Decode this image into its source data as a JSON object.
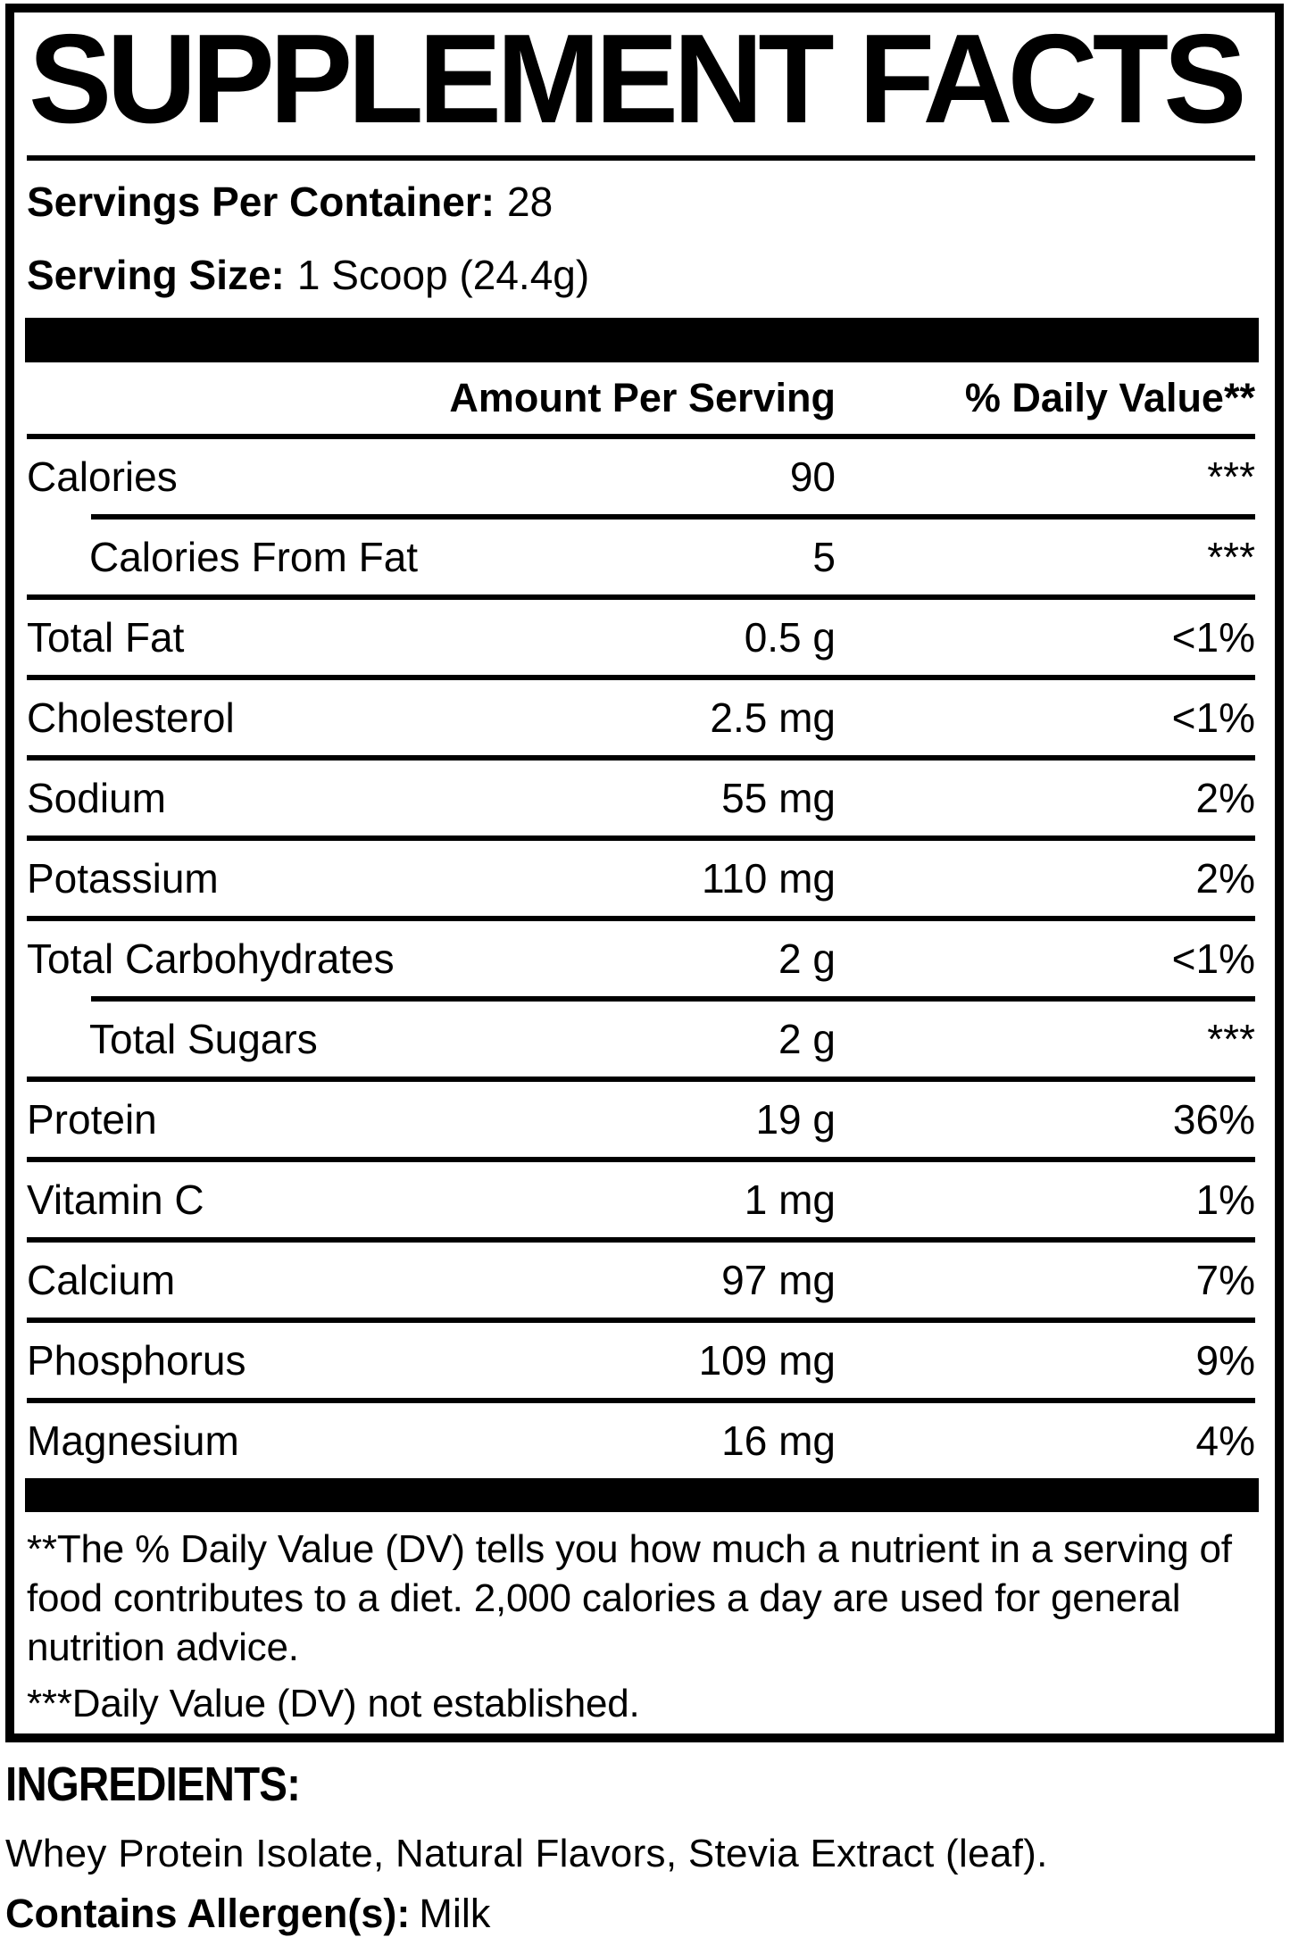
{
  "panel": {
    "title": "SUPPLEMENT FACTS",
    "servings_per_container": {
      "label": "Servings Per Container:",
      "value": "28"
    },
    "serving_size": {
      "label": "Serving Size:",
      "value": "1 Scoop (24.4g)"
    },
    "columns": {
      "amount": "Amount Per Serving",
      "dv": "% Daily Value**"
    },
    "rows": [
      {
        "name": "Calories",
        "amount": "90",
        "dv": "***",
        "indent": false,
        "sep": "full"
      },
      {
        "name": "Calories From Fat",
        "amount": "5",
        "dv": "***",
        "indent": true,
        "sep": "indent"
      },
      {
        "name": "Total Fat",
        "amount": "0.5 g",
        "dv": "<1%",
        "indent": false,
        "sep": "full"
      },
      {
        "name": "Cholesterol",
        "amount": "2.5 mg",
        "dv": "<1%",
        "indent": false,
        "sep": "full"
      },
      {
        "name": "Sodium",
        "amount": "55 mg",
        "dv": "2%",
        "indent": false,
        "sep": "full"
      },
      {
        "name": "Potassium",
        "amount": "110 mg",
        "dv": "2%",
        "indent": false,
        "sep": "full"
      },
      {
        "name": "Total Carbohydrates",
        "amount": "2 g",
        "dv": "<1%",
        "indent": false,
        "sep": "full"
      },
      {
        "name": "Total Sugars",
        "amount": "2 g",
        "dv": "***",
        "indent": true,
        "sep": "indent"
      },
      {
        "name": "Protein",
        "amount": "19 g",
        "dv": "36%",
        "indent": false,
        "sep": "full"
      },
      {
        "name": "Vitamin C",
        "amount": "1 mg",
        "dv": "1%",
        "indent": false,
        "sep": "full"
      },
      {
        "name": "Calcium",
        "amount": "97 mg",
        "dv": "7%",
        "indent": false,
        "sep": "full"
      },
      {
        "name": "Phosphorus",
        "amount": "109 mg",
        "dv": "9%",
        "indent": false,
        "sep": "full"
      },
      {
        "name": "Magnesium",
        "amount": "16 mg",
        "dv": "4%",
        "indent": false,
        "sep": "full"
      }
    ],
    "footnotes": [
      "**The % Daily Value (DV) tells you how much a nutrient in a serving of food contributes to a diet. 2,000 calories a day are used for general nutrition advice.",
      "***Daily Value (DV) not established."
    ]
  },
  "ingredients": {
    "heading": "INGREDIENTS:",
    "list": "Whey Protein Isolate, Natural Flavors, Stevia Extract (leaf).",
    "allergen_label": "Contains Allergen(s):",
    "allergen_value": "Milk"
  },
  "colors": {
    "ink": "#000000",
    "background": "#ffffff"
  }
}
